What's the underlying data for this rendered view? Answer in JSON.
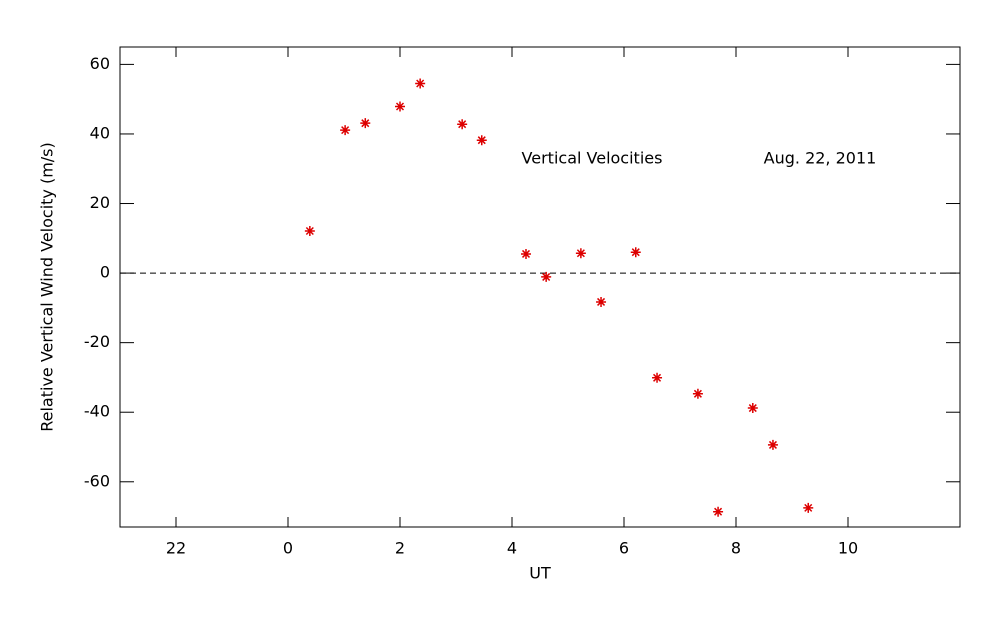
{
  "chart_data": {
    "type": "scatter",
    "x_label": "UT",
    "y_label": "Relative Vertical Wind Velocity (m/s)",
    "annotations": [
      "Vertical Velocities",
      "Aug. 22, 2011"
    ],
    "xlim": [
      -3,
      12
    ],
    "ylim": [
      -73,
      65
    ],
    "xticks": [
      {
        "value": -2,
        "label": "22"
      },
      0,
      2,
      4,
      6,
      8,
      10
    ],
    "yticks": [
      -60,
      -40,
      -20,
      0,
      20,
      40,
      60
    ],
    "reference_line": 0,
    "color": "#dd0000",
    "x": [
      0.39,
      1.02,
      1.38,
      2.0,
      2.36,
      3.11,
      3.46,
      4.25,
      4.61,
      5.23,
      5.59,
      6.21,
      6.59,
      7.32,
      7.68,
      8.3,
      8.66,
      9.29
    ],
    "values": [
      12.1,
      41.1,
      43.1,
      47.9,
      54.5,
      42.8,
      38.2,
      5.5,
      -1.1,
      5.7,
      -8.3,
      6.0,
      -30.1,
      -34.7,
      -68.6,
      -38.8,
      -49.4,
      -67.5
    ]
  }
}
